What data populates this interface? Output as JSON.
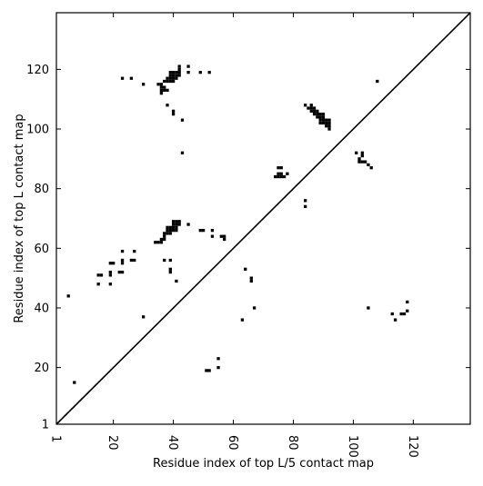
{
  "chart_data": {
    "type": "scatter",
    "title": "",
    "xlabel": "Residue index of top L/5 contact map",
    "ylabel": "Residue index of top L contact map",
    "xlim": [
      1,
      139
    ],
    "ylim": [
      1,
      139
    ],
    "x_ticks": [
      1,
      20,
      40,
      60,
      80,
      100,
      120
    ],
    "y_ticks": [
      1,
      20,
      40,
      60,
      80,
      100,
      120
    ],
    "x_tick_labels": [
      "1",
      "20",
      "40",
      "60",
      "80",
      "100",
      "120"
    ],
    "y_tick_labels": [
      "1",
      "20",
      "40",
      "60",
      "80",
      "100",
      "120"
    ],
    "x_tick_rotation": -90,
    "grid": false,
    "legend": "none",
    "marker": "square",
    "marker_color": "#000000",
    "reference_line": {
      "from": [
        1,
        1
      ],
      "to": [
        139,
        139
      ]
    },
    "series": [
      {
        "points": [
          [
            7,
            15
          ],
          [
            5,
            44
          ],
          [
            30,
            37
          ],
          [
            15,
            48
          ],
          [
            15,
            51
          ],
          [
            16,
            51
          ],
          [
            19,
            48
          ],
          [
            19,
            51
          ],
          [
            19,
            52
          ],
          [
            19,
            55
          ],
          [
            20,
            55
          ],
          [
            22,
            52
          ],
          [
            23,
            52
          ],
          [
            23,
            55
          ],
          [
            23,
            56
          ],
          [
            23,
            59
          ],
          [
            26,
            56
          ],
          [
            27,
            56
          ],
          [
            27,
            59
          ],
          [
            34,
            62
          ],
          [
            35,
            62
          ],
          [
            36,
            62
          ],
          [
            36,
            63
          ],
          [
            37,
            63
          ],
          [
            37,
            64
          ],
          [
            37,
            65
          ],
          [
            38,
            65
          ],
          [
            39,
            65
          ],
          [
            38,
            66
          ],
          [
            39,
            66
          ],
          [
            40,
            66
          ],
          [
            41,
            66
          ],
          [
            38,
            67
          ],
          [
            39,
            67
          ],
          [
            40,
            67
          ],
          [
            41,
            67
          ],
          [
            40,
            68
          ],
          [
            41,
            68
          ],
          [
            42,
            68
          ],
          [
            40,
            69
          ],
          [
            41,
            69
          ],
          [
            42,
            69
          ],
          [
            37,
            56
          ],
          [
            39,
            56
          ],
          [
            39,
            52
          ],
          [
            39,
            53
          ],
          [
            41,
            49
          ],
          [
            45,
            68
          ],
          [
            49,
            66
          ],
          [
            50,
            66
          ],
          [
            53,
            64
          ],
          [
            53,
            66
          ],
          [
            56,
            64
          ],
          [
            57,
            63
          ],
          [
            57,
            64
          ],
          [
            64,
            53
          ],
          [
            66,
            49
          ],
          [
            66,
            50
          ],
          [
            63,
            36
          ],
          [
            67,
            40
          ],
          [
            55,
            20
          ],
          [
            55,
            23
          ],
          [
            51,
            19
          ],
          [
            52,
            19
          ],
          [
            23,
            117
          ],
          [
            26,
            117
          ],
          [
            30,
            115
          ],
          [
            35,
            115
          ],
          [
            36,
            115
          ],
          [
            36,
            114
          ],
          [
            36,
            113
          ],
          [
            36,
            112
          ],
          [
            37,
            113
          ],
          [
            37,
            114
          ],
          [
            38,
            113
          ],
          [
            37,
            116
          ],
          [
            38,
            116
          ],
          [
            39,
            116
          ],
          [
            40,
            116
          ],
          [
            38,
            117
          ],
          [
            39,
            117
          ],
          [
            40,
            117
          ],
          [
            41,
            117
          ],
          [
            39,
            118
          ],
          [
            40,
            118
          ],
          [
            41,
            118
          ],
          [
            42,
            118
          ],
          [
            39,
            119
          ],
          [
            40,
            119
          ],
          [
            41,
            119
          ],
          [
            42,
            119
          ],
          [
            42,
            120
          ],
          [
            42,
            121
          ],
          [
            45,
            119
          ],
          [
            45,
            121
          ],
          [
            49,
            119
          ],
          [
            52,
            119
          ],
          [
            38,
            108
          ],
          [
            40,
            105
          ],
          [
            40,
            106
          ],
          [
            43,
            103
          ],
          [
            43,
            92
          ],
          [
            74,
            84
          ],
          [
            75,
            84
          ],
          [
            76,
            84
          ],
          [
            77,
            84
          ],
          [
            75,
            85
          ],
          [
            76,
            85
          ],
          [
            78,
            85
          ],
          [
            75,
            87
          ],
          [
            76,
            87
          ],
          [
            84,
            74
          ],
          [
            84,
            76
          ],
          [
            84,
            108
          ],
          [
            85,
            107
          ],
          [
            86,
            107
          ],
          [
            86,
            106
          ],
          [
            86,
            108
          ],
          [
            87,
            106
          ],
          [
            87,
            107
          ],
          [
            87,
            105
          ],
          [
            88,
            105
          ],
          [
            88,
            104
          ],
          [
            88,
            106
          ],
          [
            89,
            105
          ],
          [
            89,
            104
          ],
          [
            89,
            103
          ],
          [
            89,
            102
          ],
          [
            90,
            105
          ],
          [
            90,
            104
          ],
          [
            90,
            103
          ],
          [
            90,
            102
          ],
          [
            91,
            103
          ],
          [
            91,
            102
          ],
          [
            91,
            101
          ],
          [
            92,
            103
          ],
          [
            92,
            102
          ],
          [
            92,
            101
          ],
          [
            92,
            100
          ],
          [
            101,
            92
          ],
          [
            102,
            89
          ],
          [
            102,
            90
          ],
          [
            103,
            89
          ],
          [
            103,
            91
          ],
          [
            103,
            92
          ],
          [
            104,
            89
          ],
          [
            105,
            88
          ],
          [
            106,
            87
          ],
          [
            105,
            40
          ],
          [
            108,
            116
          ],
          [
            113,
            38
          ],
          [
            114,
            36
          ],
          [
            116,
            38
          ],
          [
            117,
            38
          ],
          [
            118,
            39
          ],
          [
            118,
            42
          ]
        ]
      }
    ]
  }
}
